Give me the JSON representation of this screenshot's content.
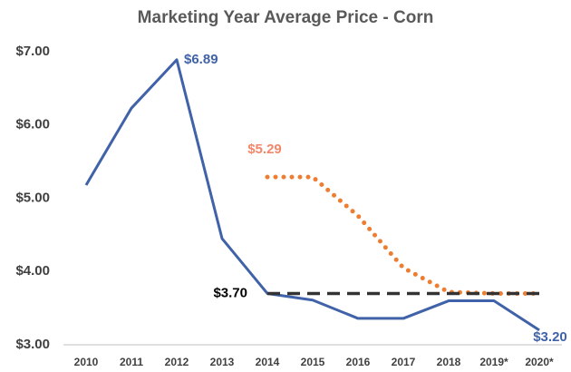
{
  "chart_data": {
    "type": "line",
    "title": "Marketing Year Average Price - Corn",
    "categories": [
      "2010",
      "2011",
      "2012",
      "2013",
      "2014",
      "2015",
      "2016",
      "2017",
      "2018",
      "2019*",
      "2020*"
    ],
    "series": [
      {
        "color": "#4062a8",
        "style": "solid",
        "values": [
          5.18,
          6.23,
          6.89,
          4.45,
          3.7,
          3.61,
          3.36,
          3.36,
          3.6,
          3.6,
          3.2
        ],
        "value_labels": [
          null,
          null,
          "$6.89",
          null,
          null,
          null,
          null,
          null,
          null,
          null,
          "$3.20"
        ]
      },
      {
        "color": "#ed7d31",
        "style": "dotted",
        "values": [
          null,
          null,
          null,
          null,
          5.29,
          5.29,
          4.76,
          4.05,
          3.72,
          3.7,
          3.7
        ],
        "value_labels": [
          null,
          null,
          null,
          null,
          "$5.29",
          null,
          null,
          null,
          null,
          null,
          null
        ]
      },
      {
        "color": "#333333",
        "style": "dashed",
        "values": [
          null,
          null,
          null,
          null,
          3.7,
          3.7,
          3.7,
          3.7,
          3.7,
          3.7,
          3.7
        ],
        "value_labels": [
          null,
          null,
          null,
          null,
          "$3.70",
          null,
          null,
          null,
          null,
          null,
          null
        ]
      }
    ],
    "ylim": [
      3.0,
      7.0
    ],
    "yticks": [
      {
        "value": 3,
        "label": "$3.00"
      },
      {
        "value": 4,
        "label": "$4.00"
      },
      {
        "value": 5,
        "label": "$5.00"
      },
      {
        "value": 6,
        "label": "$6.00"
      },
      {
        "value": 7,
        "label": "$7.00"
      }
    ],
    "grid": false
  }
}
